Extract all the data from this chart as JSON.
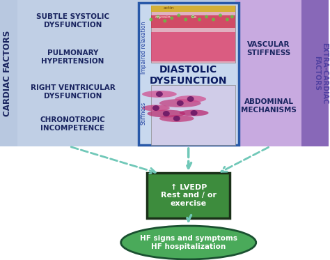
{
  "cardiac_label": "CARDIAC FACTORS",
  "extracardiac_label": "EXTRA-CARDIAC\nFACTORS",
  "cardiac_items": [
    "SUBTLE SYSTOLIC\nDYSFUNCTION",
    "PULMONARY\nHYPERTENSION",
    "RIGHT VENTRICULAR\nDYSFUNCTION",
    "CHRONOTROPIC\nINCOMPETENCE"
  ],
  "extracardiac_items": [
    "VASCULAR\nSTIFFNESS",
    "ABDOMINAL\nMECHANISMS"
  ],
  "center_box_label": "DIASTOLIC\nDYSFUNCTION",
  "impaired_label": "Impaired relaxation",
  "stiffness_label": "Stiffness",
  "lvedp_box_label": "↑ LVEDP\nRest and / or\nexercise",
  "lvedp_box_color": "#1a3018",
  "lvedp_box_fill": "#3d8c3d",
  "hf_ellipse_label": "HF signs and symptoms\nHF hospitalization",
  "hf_ellipse_color": "#1a5030",
  "hf_ellipse_fill": "#4aaa5a",
  "arrow_color": "#70c8b8",
  "bg_left": "#b8c8e0",
  "bg_right_near": "#caaade",
  "bg_right_far": "#9878c8",
  "text_dark": "#1a2560",
  "box_border": "#2858a8",
  "box_fill": "#c8d8ee"
}
